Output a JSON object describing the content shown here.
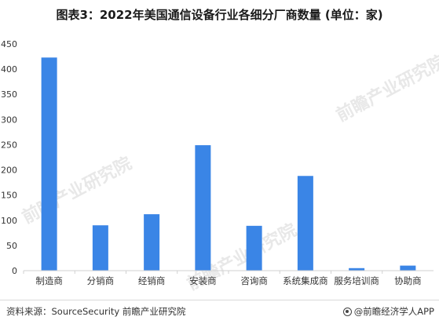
{
  "title": "图表3：2022年美国通信设备行业各细分厂商数量 (单位：家)",
  "footer": {
    "source": "资料来源：SourceSecurity 前瞻产业研究院",
    "brand": "@前瞻经济学人APP"
  },
  "colors": {
    "bar": "#3a85e6",
    "axis": "#d0d0d0",
    "text": "#333333"
  },
  "watermark_text": "前瞻产业研究院",
  "chart_data": {
    "type": "bar",
    "categories": [
      "制造商",
      "分销商",
      "经销商",
      "安装商",
      "咨询商",
      "系统集成商",
      "服务培训商",
      "协助商"
    ],
    "series": [
      {
        "values": [
          423,
          90,
          112,
          249,
          89,
          188,
          5,
          10
        ]
      }
    ],
    "ylim": [
      0,
      450
    ],
    "yticks": [
      0,
      50,
      100,
      150,
      200,
      250,
      300,
      350,
      400,
      450
    ],
    "grid": false,
    "legend": "none"
  }
}
